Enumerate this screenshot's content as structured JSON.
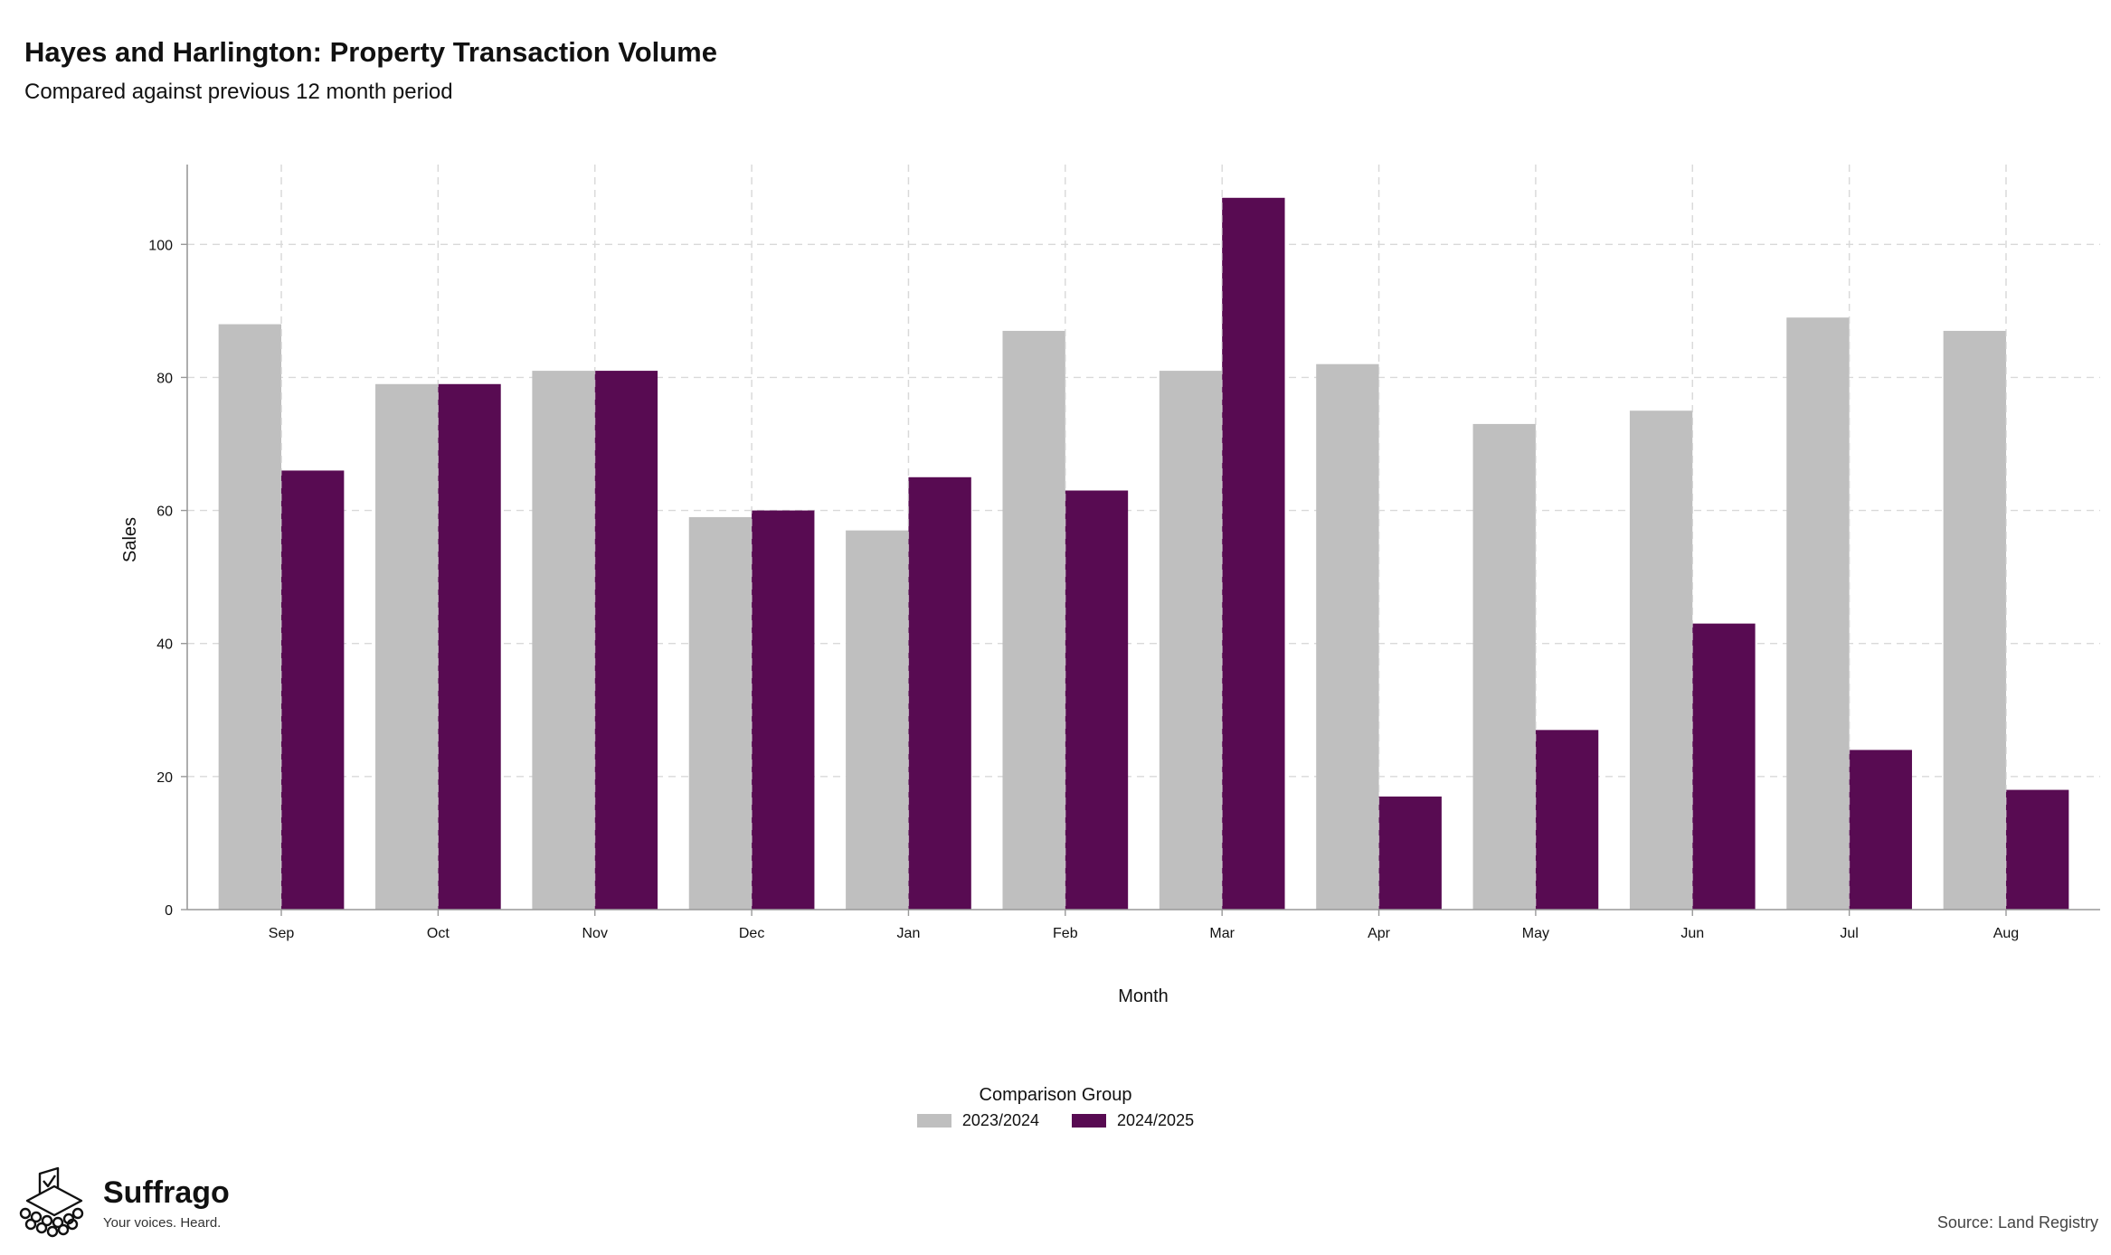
{
  "header": {
    "title": "Hayes and Harlington: Property Transaction Volume",
    "subtitle": "Compared against previous 12 month period"
  },
  "chart_data": {
    "type": "bar",
    "categories": [
      "Sep",
      "Oct",
      "Nov",
      "Dec",
      "Jan",
      "Feb",
      "Mar",
      "Apr",
      "May",
      "Jun",
      "Jul",
      "Aug"
    ],
    "series": [
      {
        "name": "2023/2024",
        "color": "#bfbfbf",
        "values": [
          88,
          79,
          81,
          59,
          57,
          87,
          81,
          82,
          73,
          75,
          89,
          87
        ]
      },
      {
        "name": "2024/2025",
        "color": "#580b52",
        "values": [
          66,
          79,
          81,
          60,
          65,
          63,
          107,
          17,
          27,
          43,
          24,
          18
        ]
      }
    ],
    "xlabel": "Month",
    "ylabel": "Sales",
    "ylim": [
      0,
      112
    ],
    "yticks": [
      0,
      20,
      40,
      60,
      80,
      100
    ],
    "grid": true,
    "legend": {
      "title": "Comparison Group",
      "position": "bottom-center"
    }
  },
  "footer": {
    "brand_name": "Suffrago",
    "brand_tagline": "Your voices. Heard.",
    "logo_icon": "ballot-box-icon",
    "source": "Source: Land Registry"
  }
}
